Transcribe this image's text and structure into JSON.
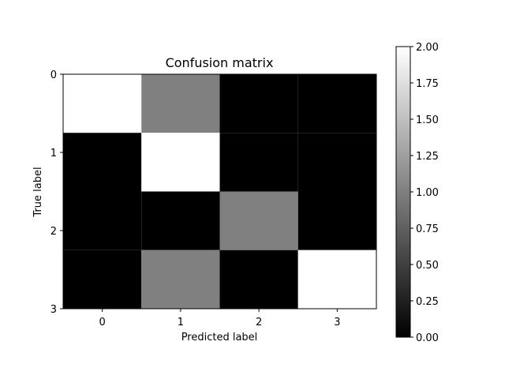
{
  "chart_data": {
    "type": "heatmap",
    "title": "Confusion matrix",
    "xlabel": "Predicted label",
    "ylabel": "True label",
    "x_ticks": [
      "0",
      "1",
      "2",
      "3"
    ],
    "y_ticks": [
      "0",
      "1",
      "2",
      "3"
    ],
    "matrix": [
      [
        2,
        1,
        0,
        0
      ],
      [
        0,
        2,
        0,
        0
      ],
      [
        0,
        0,
        1,
        0
      ],
      [
        0,
        1,
        0,
        2
      ]
    ],
    "colormap": "gray",
    "vmin": 0,
    "vmax": 2,
    "colorbar_ticks": [
      "0.00",
      "0.25",
      "0.50",
      "0.75",
      "1.00",
      "1.25",
      "1.50",
      "1.75",
      "2.00"
    ]
  }
}
